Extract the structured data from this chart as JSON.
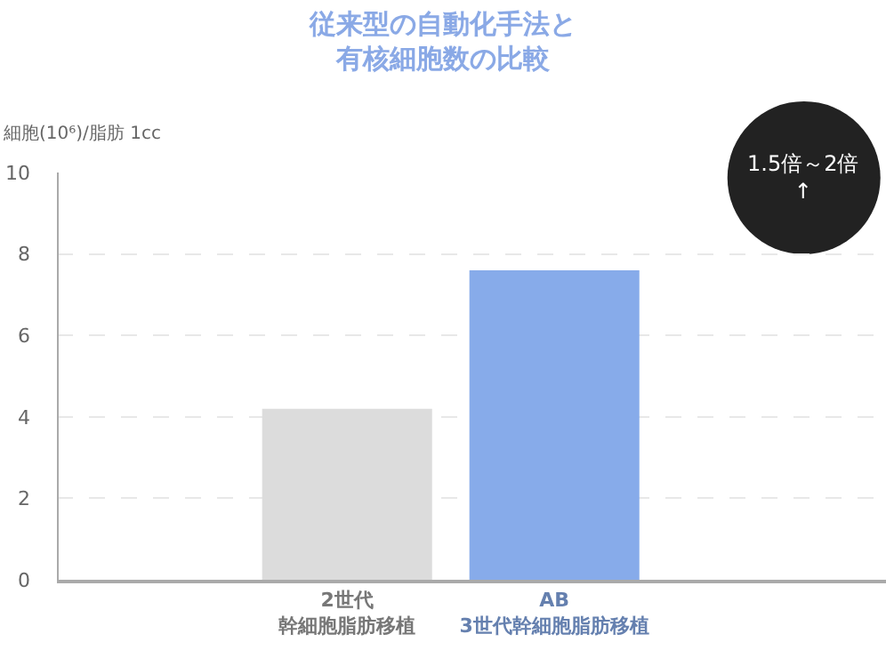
{
  "chart_data": {
    "type": "bar",
    "title": "従来型の自動化手法と有核細胞数の比較",
    "ylabel": "細胞(10⁶)/脂肪 1cc",
    "categories": [
      "2世代幹細胞脂肪移植",
      "AB\n3世代幹細胞脂肪移植"
    ],
    "values": [
      4.2,
      7.6
    ],
    "colors": [
      "#dcdcdc",
      "#87abea"
    ],
    "ylim": [
      0,
      10
    ],
    "yticks": [
      0,
      2,
      4,
      6,
      8,
      10
    ],
    "grid": "y",
    "annotations": [
      "1.5倍～2倍\n↑"
    ]
  }
}
